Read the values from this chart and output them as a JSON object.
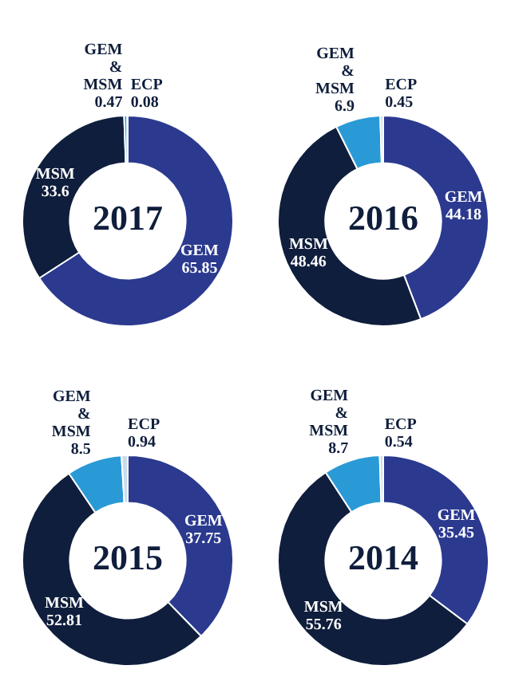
{
  "chart_data": [
    {
      "type": "donut",
      "title": "2017",
      "categories": [
        "GEM",
        "MSM",
        "GEM & MSM",
        "ECP"
      ],
      "values": [
        65.85,
        33.6,
        0.47,
        0.08
      ],
      "colors": [
        "#2b3a8f",
        "#0f1e3c",
        "#2a9ad6",
        "#c9dcee"
      ],
      "data_labels": true,
      "legend": false
    },
    {
      "type": "donut",
      "title": "2016",
      "categories": [
        "GEM",
        "MSM",
        "GEM & MSM",
        "ECP"
      ],
      "values": [
        44.18,
        48.46,
        6.9,
        0.45
      ],
      "colors": [
        "#2b3a8f",
        "#0f1e3c",
        "#2a9ad6",
        "#c9dcee"
      ],
      "data_labels": true,
      "legend": false
    },
    {
      "type": "donut",
      "title": "2015",
      "categories": [
        "GEM",
        "MSM",
        "GEM & MSM",
        "ECP"
      ],
      "values": [
        37.75,
        52.81,
        8.5,
        0.94
      ],
      "colors": [
        "#2b3a8f",
        "#0f1e3c",
        "#2a9ad6",
        "#c9dcee"
      ],
      "data_labels": true,
      "legend": false
    },
    {
      "type": "donut",
      "title": "2014",
      "categories": [
        "GEM",
        "MSM",
        "GEM & MSM",
        "ECP"
      ],
      "values": [
        35.45,
        55.76,
        8.7,
        0.54
      ],
      "colors": [
        "#2b3a8f",
        "#0f1e3c",
        "#2a9ad6",
        "#c9dcee"
      ],
      "data_labels": true,
      "legend": false
    }
  ]
}
